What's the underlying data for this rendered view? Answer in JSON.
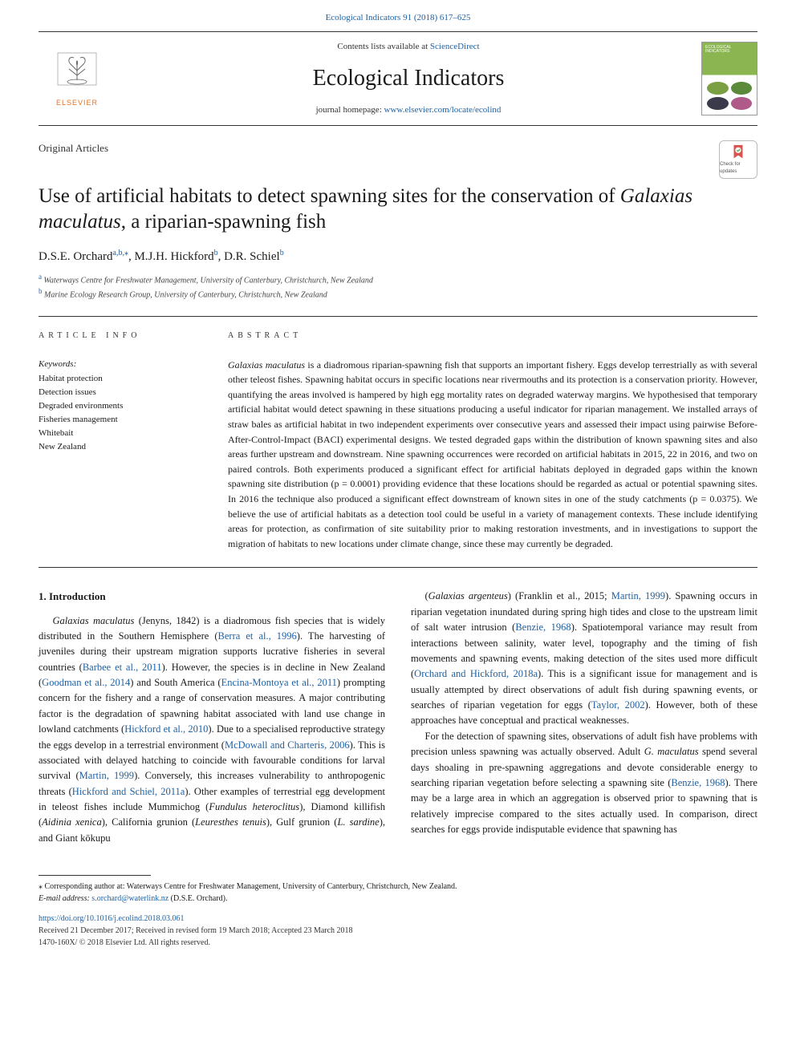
{
  "colors": {
    "link": "#2061a3",
    "elsevier_orange": "#e9711c",
    "text": "#1a1a1a",
    "rule": "#333333",
    "cover_green": "#8ab551"
  },
  "typography": {
    "body_font": "Georgia, Times New Roman, serif",
    "title_fontsize_pt": 19,
    "journal_name_fontsize_pt": 21,
    "abstract_fontsize_pt": 9,
    "body_fontsize_pt": 9.5
  },
  "journal_ref": "Ecological Indicators 91 (2018) 617–625",
  "header": {
    "contents_prefix": "Contents lists available at ",
    "contents_link_text": "ScienceDirect",
    "journal_name": "Ecological Indicators",
    "homepage_prefix": "journal homepage: ",
    "homepage_url": "www.elsevier.com/locate/ecolind",
    "publisher_logo_text": "ELSEVIER",
    "cover_title": "ECOLOGICAL INDICATORS"
  },
  "article": {
    "type": "Original Articles",
    "updates_badge": "Check for updates",
    "title_pre": "Use of artificial habitats to detect spawning sites for the conservation of ",
    "title_species": "Galaxias maculatus",
    "title_post": ", a riparian-spawning fish",
    "authors_html": "D.S.E. Orchard<sup><a>a</a>,<a>b</a>,⁎</sup>, M.J.H. Hickford<sup><a>b</a></sup>, D.R. Schiel<sup><a>b</a></sup>",
    "affiliations": [
      {
        "label": "a",
        "text": "Waterways Centre for Freshwater Management, University of Canterbury, Christchurch, New Zealand"
      },
      {
        "label": "b",
        "text": "Marine Ecology Research Group, University of Canterbury, Christchurch, New Zealand"
      }
    ]
  },
  "article_info": {
    "heading": "ARTICLE INFO",
    "keywords_label": "Keywords:",
    "keywords": [
      "Habitat protection",
      "Detection issues",
      "Degraded environments",
      "Fisheries management",
      "Whitebait",
      "New Zealand"
    ]
  },
  "abstract": {
    "heading": "ABSTRACT",
    "text": "Galaxias maculatus is a diadromous riparian-spawning fish that supports an important fishery. Eggs develop terrestrially as with several other teleost fishes. Spawning habitat occurs in specific locations near rivermouths and its protection is a conservation priority. However, quantifying the areas involved is hampered by high egg mortality rates on degraded waterway margins. We hypothesised that temporary artificial habitat would detect spawning in these situations producing a useful indicator for riparian management. We installed arrays of straw bales as artificial habitat in two independent experiments over consecutive years and assessed their impact using pairwise Before-After-Control-Impact (BACI) experimental designs. We tested degraded gaps within the distribution of known spawning sites and also areas further upstream and downstream. Nine spawning occurrences were recorded on artificial habitats in 2015, 22 in 2016, and two on paired controls. Both experiments produced a significant effect for artificial habitats deployed in degraded gaps within the known spawning site distribution (p = 0.0001) providing evidence that these locations should be regarded as actual or potential spawning sites. In 2016 the technique also produced a significant effect downstream of known sites in one of the study catchments (p = 0.0375). We believe the use of artificial habitats as a detection tool could be useful in a variety of management contexts. These include identifying areas for protection, as confirmation of site suitability prior to making restoration investments, and in investigations to support the migration of habitats to new locations under climate change, since these may currently be degraded."
  },
  "body": {
    "section_num": "1.",
    "section_title": "Introduction",
    "col1_p1": "Galaxias maculatus (Jenyns, 1842) is a diadromous fish species that is widely distributed in the Southern Hemisphere (Berra et al., 1996). The harvesting of juveniles during their upstream migration supports lucrative fisheries in several countries (Barbee et al., 2011). However, the species is in decline in New Zealand (Goodman et al., 2014) and South America (Encina-Montoya et al., 2011) prompting concern for the fishery and a range of conservation measures. A major contributing factor is the degradation of spawning habitat associated with land use change in lowland catchments (Hickford et al., 2010). Due to a specialised reproductive strategy the eggs develop in a terrestrial environment (McDowall and Charteris, 2006). This is associated with delayed hatching to coincide with favourable conditions for larval survival (Martin, 1999). Conversely, this increases vulnerability to anthropogenic threats (Hickford and Schiel, 2011a). Other examples of terrestrial egg development in teleost fishes include Mummichog (Fundulus heteroclitus), Diamond killifish (Aidinia xenica), California grunion (Leuresthes tenuis), Gulf grunion (L. sardine), and Giant kōkupu",
    "col2_p1": "(Galaxias argenteus) (Franklin et al., 2015; Martin, 1999). Spawning occurs in riparian vegetation inundated during spring high tides and close to the upstream limit of salt water intrusion (Benzie, 1968). Spatiotemporal variance may result from interactions between salinity, water level, topography and the timing of fish movements and spawning events, making detection of the sites used more difficult (Orchard and Hickford, 2018a). This is a significant issue for management and is usually attempted by direct observations of adult fish during spawning events, or searches of riparian vegetation for eggs (Taylor, 2002). However, both of these approaches have conceptual and practical weaknesses.",
    "col2_p2": "For the detection of spawning sites, observations of adult fish have problems with precision unless spawning was actually observed. Adult G. maculatus spend several days shoaling in pre-spawning aggregations and devote considerable energy to searching riparian vegetation before selecting a spawning site (Benzie, 1968). There may be a large area in which an aggregation is observed prior to spawning that is relatively imprecise compared to the sites actually used. In comparison, direct searches for eggs provide indisputable evidence that spawning has",
    "citations": {
      "berra1996": "Berra et al., 1996",
      "barbee2011": "Barbee et al., 2011",
      "goodman2014": "Goodman et al., 2014",
      "encina2011": "Encina-Montoya et al., 2011",
      "hickford2010": "Hickford et al., 2010",
      "mcdowall2006": "McDowall and Charteris, 2006",
      "martin1999": "Martin, 1999",
      "hickford2011a": "Hickford and Schiel, 2011a",
      "franklin2015": "Franklin et al., 2015; Martin, 1999",
      "benzie1968": "Benzie, 1968",
      "orchard2018a": "Orchard and Hickford, 2018a",
      "taylor2002": "Taylor, 2002"
    }
  },
  "footer": {
    "corr_label": "⁎ Corresponding author at: Waterways Centre for Freshwater Management, University of Canterbury, Christchurch, New Zealand.",
    "email_label": "E-mail address: ",
    "email": "s.orchard@waterlink.nz",
    "email_suffix": " (D.S.E. Orchard).",
    "doi": "https://doi.org/10.1016/j.ecolind.2018.03.061",
    "received": "Received 21 December 2017; Received in revised form 19 March 2018; Accepted 23 March 2018",
    "copyright": "1470-160X/ © 2018 Elsevier Ltd. All rights reserved."
  }
}
